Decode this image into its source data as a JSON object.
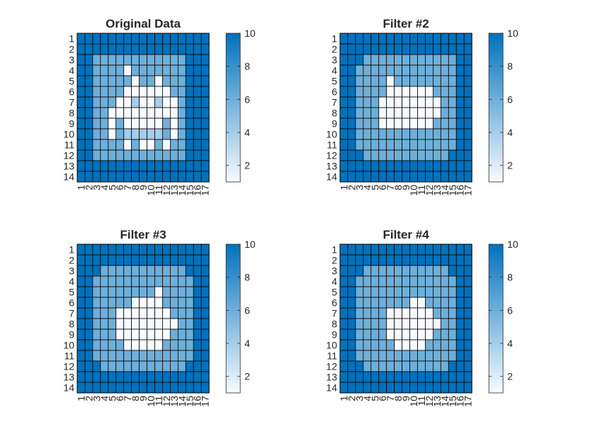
{
  "chart_data": [
    {
      "type": "heatmap",
      "title": "Original Data",
      "xticks": [
        "1",
        "2",
        "3",
        "4",
        "5",
        "6",
        "7",
        "8",
        "9",
        "10",
        "11",
        "12",
        "13",
        "14",
        "15",
        "16",
        "17"
      ],
      "yticks": [
        "1",
        "2",
        "3",
        "4",
        "5",
        "6",
        "7",
        "8",
        "9",
        "10",
        "11",
        "12",
        "13",
        "14"
      ],
      "colorbar_ticks": [
        "2",
        "4",
        "6",
        "8",
        "10"
      ],
      "clim": [
        1,
        10
      ],
      "colormap": [
        "#f7fbff",
        "#0072bd"
      ],
      "values": [
        [
          10,
          10,
          10,
          10,
          10,
          10,
          10,
          10,
          10,
          10,
          10,
          10,
          10,
          10,
          10,
          10,
          10
        ],
        [
          10,
          10,
          10,
          10,
          10,
          10,
          10,
          10,
          10,
          10,
          10,
          10,
          10,
          10,
          10,
          10,
          10
        ],
        [
          10,
          10,
          6,
          6,
          6,
          6,
          6,
          6,
          6,
          6,
          6,
          6,
          6,
          6,
          10,
          10,
          10
        ],
        [
          10,
          10,
          6,
          6,
          6,
          6,
          1,
          6,
          6,
          6,
          6,
          6,
          6,
          6,
          10,
          10,
          10
        ],
        [
          10,
          10,
          6,
          6,
          6,
          6,
          6,
          1,
          6,
          6,
          1,
          6,
          6,
          6,
          10,
          10,
          10
        ],
        [
          10,
          10,
          6,
          6,
          6,
          6,
          1,
          1,
          1,
          1,
          1,
          1,
          6,
          6,
          10,
          10,
          10
        ],
        [
          10,
          10,
          6,
          6,
          6,
          1,
          1,
          4,
          1,
          1,
          4,
          1,
          1,
          6,
          10,
          10,
          10
        ],
        [
          10,
          10,
          6,
          6,
          1,
          1,
          1,
          1,
          1,
          1,
          1,
          1,
          1,
          6,
          10,
          10,
          10
        ],
        [
          10,
          10,
          6,
          6,
          1,
          6,
          1,
          1,
          1,
          1,
          1,
          6,
          1,
          6,
          10,
          10,
          10
        ],
        [
          10,
          10,
          6,
          6,
          1,
          6,
          4,
          4,
          4,
          4,
          4,
          6,
          1,
          6,
          10,
          10,
          10
        ],
        [
          10,
          10,
          6,
          6,
          6,
          6,
          1,
          6,
          1,
          1,
          6,
          1,
          6,
          6,
          10,
          10,
          10
        ],
        [
          10,
          10,
          6,
          6,
          6,
          6,
          6,
          6,
          6,
          6,
          6,
          6,
          6,
          6,
          10,
          10,
          10
        ],
        [
          10,
          10,
          10,
          10,
          10,
          10,
          10,
          10,
          10,
          10,
          10,
          10,
          10,
          10,
          10,
          10,
          10
        ],
        [
          10,
          10,
          10,
          10,
          10,
          10,
          10,
          10,
          10,
          10,
          10,
          10,
          10,
          10,
          10,
          10,
          10
        ]
      ]
    },
    {
      "type": "heatmap",
      "title": "Filter #2",
      "xticks": [
        "1",
        "2",
        "3",
        "4",
        "5",
        "6",
        "7",
        "8",
        "9",
        "10",
        "11",
        "12",
        "13",
        "14",
        "15",
        "16",
        "17"
      ],
      "yticks": [
        "1",
        "2",
        "3",
        "4",
        "5",
        "6",
        "7",
        "8",
        "9",
        "10",
        "11",
        "12",
        "13",
        "14"
      ],
      "colorbar_ticks": [
        "2",
        "4",
        "6",
        "8",
        "10"
      ],
      "clim": [
        1,
        10
      ],
      "colormap": [
        "#f7fbff",
        "#0072bd"
      ],
      "values": [
        [
          10,
          10,
          10,
          10,
          10,
          10,
          10,
          10,
          10,
          10,
          10,
          10,
          10,
          10,
          10,
          10,
          10
        ],
        [
          10,
          10,
          10,
          10,
          10,
          10,
          10,
          10,
          10,
          10,
          10,
          10,
          10,
          10,
          10,
          10,
          10
        ],
        [
          10,
          10,
          10,
          6,
          6,
          6,
          6,
          6,
          6,
          6,
          6,
          6,
          6,
          6,
          6,
          10,
          10
        ],
        [
          10,
          10,
          6,
          6,
          6,
          6,
          6,
          6,
          6,
          6,
          6,
          6,
          6,
          6,
          6,
          10,
          10
        ],
        [
          10,
          10,
          6,
          6,
          6,
          6,
          1,
          6,
          6,
          6,
          6,
          6,
          6,
          6,
          6,
          10,
          10
        ],
        [
          10,
          10,
          6,
          6,
          6,
          6,
          1,
          1,
          1,
          1,
          1,
          1,
          6,
          6,
          6,
          10,
          10
        ],
        [
          10,
          10,
          6,
          6,
          6,
          1,
          1,
          1,
          1,
          1,
          1,
          1,
          1,
          6,
          6,
          10,
          10
        ],
        [
          10,
          10,
          6,
          6,
          6,
          1,
          1,
          1,
          1,
          1,
          1,
          1,
          1,
          6,
          6,
          10,
          10
        ],
        [
          10,
          10,
          6,
          6,
          6,
          1,
          1,
          1,
          1,
          1,
          1,
          1,
          6,
          6,
          6,
          10,
          10
        ],
        [
          10,
          10,
          6,
          6,
          6,
          6,
          6,
          6,
          6,
          6,
          6,
          6,
          6,
          6,
          6,
          10,
          10
        ],
        [
          10,
          10,
          6,
          6,
          6,
          6,
          6,
          6,
          6,
          6,
          6,
          6,
          6,
          6,
          6,
          10,
          10
        ],
        [
          10,
          10,
          10,
          6,
          6,
          6,
          6,
          6,
          6,
          6,
          6,
          6,
          6,
          6,
          10,
          10,
          10
        ],
        [
          10,
          10,
          10,
          10,
          10,
          10,
          10,
          10,
          10,
          10,
          10,
          10,
          10,
          10,
          10,
          10,
          10
        ],
        [
          10,
          10,
          10,
          10,
          10,
          10,
          10,
          10,
          10,
          10,
          10,
          10,
          10,
          10,
          10,
          10,
          10
        ]
      ]
    },
    {
      "type": "heatmap",
      "title": "Filter #3",
      "xticks": [
        "1",
        "2",
        "3",
        "4",
        "5",
        "6",
        "7",
        "8",
        "9",
        "10",
        "11",
        "12",
        "13",
        "14",
        "15",
        "16",
        "17"
      ],
      "yticks": [
        "1",
        "2",
        "3",
        "4",
        "5",
        "6",
        "7",
        "8",
        "9",
        "10",
        "11",
        "12",
        "13",
        "14"
      ],
      "colorbar_ticks": [
        "2",
        "4",
        "6",
        "8",
        "10"
      ],
      "clim": [
        1,
        10
      ],
      "colormap": [
        "#f7fbff",
        "#0072bd"
      ],
      "values": [
        [
          10,
          10,
          10,
          10,
          10,
          10,
          10,
          10,
          10,
          10,
          10,
          10,
          10,
          10,
          10,
          10,
          10
        ],
        [
          10,
          10,
          10,
          10,
          10,
          10,
          10,
          10,
          10,
          10,
          10,
          10,
          10,
          10,
          10,
          10,
          10
        ],
        [
          10,
          10,
          10,
          6,
          6,
          6,
          6,
          6,
          6,
          6,
          6,
          6,
          6,
          6,
          10,
          10,
          10
        ],
        [
          10,
          10,
          6,
          6,
          6,
          6,
          6,
          6,
          6,
          6,
          6,
          6,
          6,
          6,
          6,
          10,
          10
        ],
        [
          10,
          10,
          6,
          6,
          6,
          6,
          6,
          6,
          6,
          6,
          1,
          6,
          6,
          6,
          6,
          10,
          10
        ],
        [
          10,
          10,
          6,
          6,
          6,
          6,
          6,
          1,
          1,
          1,
          1,
          6,
          6,
          6,
          6,
          10,
          10
        ],
        [
          10,
          10,
          6,
          6,
          6,
          1,
          1,
          1,
          1,
          1,
          1,
          1,
          6,
          6,
          6,
          10,
          10
        ],
        [
          10,
          10,
          6,
          6,
          6,
          1,
          1,
          1,
          1,
          1,
          1,
          1,
          1,
          6,
          6,
          10,
          10
        ],
        [
          10,
          10,
          6,
          6,
          6,
          1,
          1,
          1,
          1,
          1,
          1,
          1,
          6,
          6,
          6,
          10,
          10
        ],
        [
          10,
          10,
          6,
          6,
          6,
          6,
          1,
          1,
          1,
          1,
          1,
          6,
          6,
          6,
          6,
          10,
          10
        ],
        [
          10,
          10,
          6,
          6,
          6,
          6,
          6,
          6,
          6,
          6,
          6,
          6,
          6,
          6,
          6,
          10,
          10
        ],
        [
          10,
          10,
          10,
          6,
          6,
          6,
          6,
          6,
          6,
          6,
          6,
          6,
          6,
          6,
          10,
          10,
          10
        ],
        [
          10,
          10,
          10,
          10,
          10,
          10,
          10,
          10,
          10,
          10,
          10,
          10,
          10,
          10,
          10,
          10,
          10
        ],
        [
          10,
          10,
          10,
          10,
          10,
          10,
          10,
          10,
          10,
          10,
          10,
          10,
          10,
          10,
          10,
          10,
          10
        ]
      ]
    },
    {
      "type": "heatmap",
      "title": "Filter #4",
      "xticks": [
        "1",
        "2",
        "3",
        "4",
        "5",
        "6",
        "7",
        "8",
        "9",
        "10",
        "11",
        "12",
        "13",
        "14",
        "15",
        "16",
        "17"
      ],
      "yticks": [
        "1",
        "2",
        "3",
        "4",
        "5",
        "6",
        "7",
        "8",
        "9",
        "10",
        "11",
        "12",
        "13",
        "14"
      ],
      "colorbar_ticks": [
        "2",
        "4",
        "6",
        "8",
        "10"
      ],
      "clim": [
        1,
        10
      ],
      "colormap": [
        "#f7fbff",
        "#0072bd"
      ],
      "values": [
        [
          10,
          10,
          10,
          10,
          10,
          10,
          10,
          10,
          10,
          10,
          10,
          10,
          10,
          10,
          10,
          10,
          10
        ],
        [
          10,
          10,
          10,
          10,
          10,
          10,
          10,
          10,
          10,
          10,
          10,
          10,
          10,
          10,
          10,
          10,
          10
        ],
        [
          10,
          10,
          10,
          6,
          6,
          6,
          6,
          6,
          6,
          6,
          6,
          6,
          6,
          6,
          10,
          10,
          10
        ],
        [
          10,
          10,
          6,
          6,
          6,
          6,
          6,
          6,
          6,
          6,
          6,
          6,
          6,
          6,
          6,
          10,
          10
        ],
        [
          10,
          10,
          6,
          6,
          6,
          6,
          6,
          6,
          6,
          6,
          6,
          6,
          6,
          6,
          6,
          10,
          10
        ],
        [
          10,
          10,
          6,
          6,
          6,
          6,
          6,
          6,
          6,
          1,
          1,
          6,
          6,
          6,
          6,
          10,
          10
        ],
        [
          10,
          10,
          6,
          6,
          6,
          6,
          1,
          1,
          1,
          1,
          1,
          1,
          6,
          6,
          6,
          10,
          10
        ],
        [
          10,
          10,
          6,
          6,
          6,
          6,
          1,
          1,
          1,
          1,
          1,
          1,
          1,
          6,
          6,
          10,
          10
        ],
        [
          10,
          10,
          6,
          6,
          6,
          6,
          1,
          1,
          1,
          1,
          1,
          1,
          6,
          6,
          6,
          10,
          10
        ],
        [
          10,
          10,
          6,
          6,
          6,
          6,
          6,
          1,
          1,
          1,
          1,
          6,
          6,
          6,
          6,
          10,
          10
        ],
        [
          10,
          10,
          6,
          6,
          6,
          6,
          6,
          6,
          6,
          6,
          6,
          6,
          6,
          6,
          6,
          10,
          10
        ],
        [
          10,
          10,
          10,
          6,
          6,
          6,
          6,
          6,
          6,
          6,
          6,
          6,
          6,
          6,
          10,
          10,
          10
        ],
        [
          10,
          10,
          10,
          10,
          10,
          10,
          10,
          10,
          10,
          10,
          10,
          10,
          10,
          10,
          10,
          10,
          10
        ],
        [
          10,
          10,
          10,
          10,
          10,
          10,
          10,
          10,
          10,
          10,
          10,
          10,
          10,
          10,
          10,
          10,
          10
        ]
      ]
    }
  ]
}
